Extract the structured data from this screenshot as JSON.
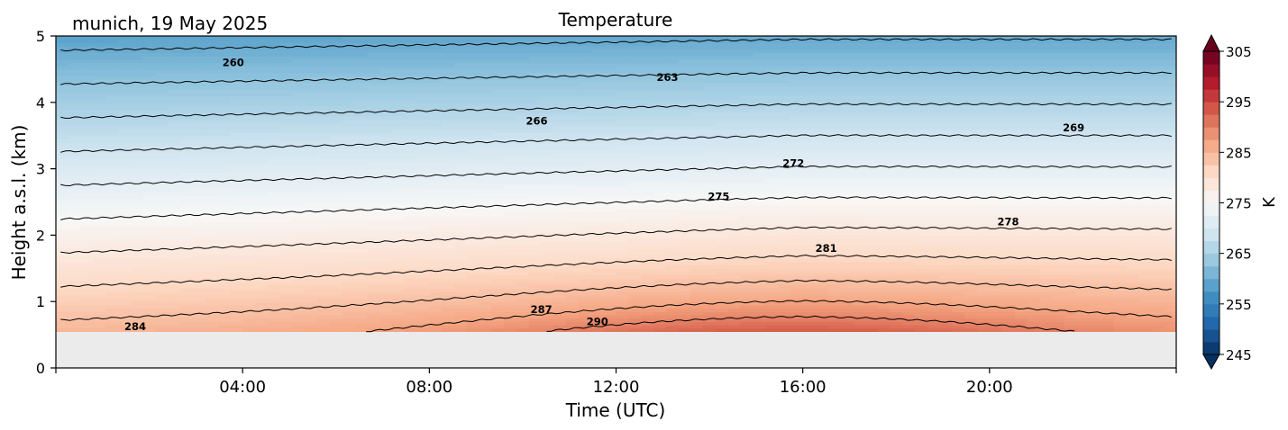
{
  "header": {
    "location_date": "munich, 19 May 2025"
  },
  "chart_data": {
    "type": "heatmap",
    "title": "Temperature",
    "xlabel": "Time (UTC)",
    "ylabel": "Height a.s.l. (km)",
    "x_unit": "hours UTC",
    "xlim": [
      0,
      24
    ],
    "ylim": [
      0,
      5
    ],
    "x_ticks": [
      {
        "value": 4,
        "label": "04:00"
      },
      {
        "value": 8,
        "label": "08:00"
      },
      {
        "value": 12,
        "label": "12:00"
      },
      {
        "value": 16,
        "label": "16:00"
      },
      {
        "value": 20,
        "label": "20:00"
      }
    ],
    "y_ticks": [
      {
        "value": 0,
        "label": "0"
      },
      {
        "value": 1,
        "label": "1"
      },
      {
        "value": 2,
        "label": "2"
      },
      {
        "value": 3,
        "label": "3"
      },
      {
        "value": 4,
        "label": "4"
      },
      {
        "value": 5,
        "label": "5"
      }
    ],
    "data_lower_limit_km": 0.55,
    "no_data_color": "#ebebeb",
    "colorbar": {
      "label": "K",
      "range": [
        245,
        305
      ],
      "ticks": [
        "245",
        "255",
        "265",
        "275",
        "285",
        "295",
        "305"
      ],
      "colormap": "RdBu_r",
      "extend": "both"
    },
    "contour_interval_K": 3,
    "contour_labels": [
      {
        "label": "260",
        "x": 3.8,
        "y": 4.6
      },
      {
        "label": "263",
        "x": 13.1,
        "y": 4.38
      },
      {
        "label": "266",
        "x": 10.3,
        "y": 3.72
      },
      {
        "label": "269",
        "x": 21.8,
        "y": 3.62
      },
      {
        "label": "272",
        "x": 15.8,
        "y": 3.08
      },
      {
        "label": "275",
        "x": 14.2,
        "y": 2.58
      },
      {
        "label": "278",
        "x": 20.4,
        "y": 2.2
      },
      {
        "label": "281",
        "x": 16.5,
        "y": 1.8
      },
      {
        "label": "284",
        "x": 1.7,
        "y": 0.62
      },
      {
        "label": "287",
        "x": 10.4,
        "y": 0.88
      },
      {
        "label": "290",
        "x": 11.6,
        "y": 0.7
      }
    ]
  }
}
